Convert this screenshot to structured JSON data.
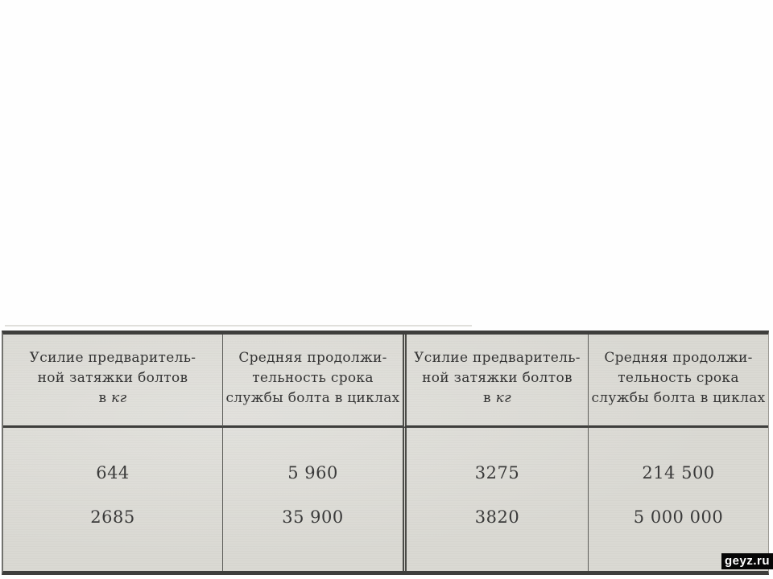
{
  "document": {
    "watermark": "geyz.ru"
  },
  "table": {
    "header_force": {
      "line1": "Усилие предваритель-",
      "line2": "ной затяжки болтов",
      "line3_prefix": "в",
      "line3_unit": "кг"
    },
    "header_life": {
      "line1": "Средняя продолжи-",
      "line2": "тельность срока",
      "line3": "службы болта в циклах"
    },
    "rows": [
      [
        "644",
        "5 960",
        "3275",
        "214 500"
      ],
      [
        "2685",
        "35 900",
        "3820",
        "5 000 000"
      ]
    ]
  },
  "colors": {
    "page_bg": "#fefefe",
    "paper": "#d9d8d2",
    "ink": "#343434",
    "ink_num": "#3a3a3a",
    "border": "#3e3e3c",
    "watermark_bg": "#060606",
    "watermark_text": "#ffffff"
  }
}
